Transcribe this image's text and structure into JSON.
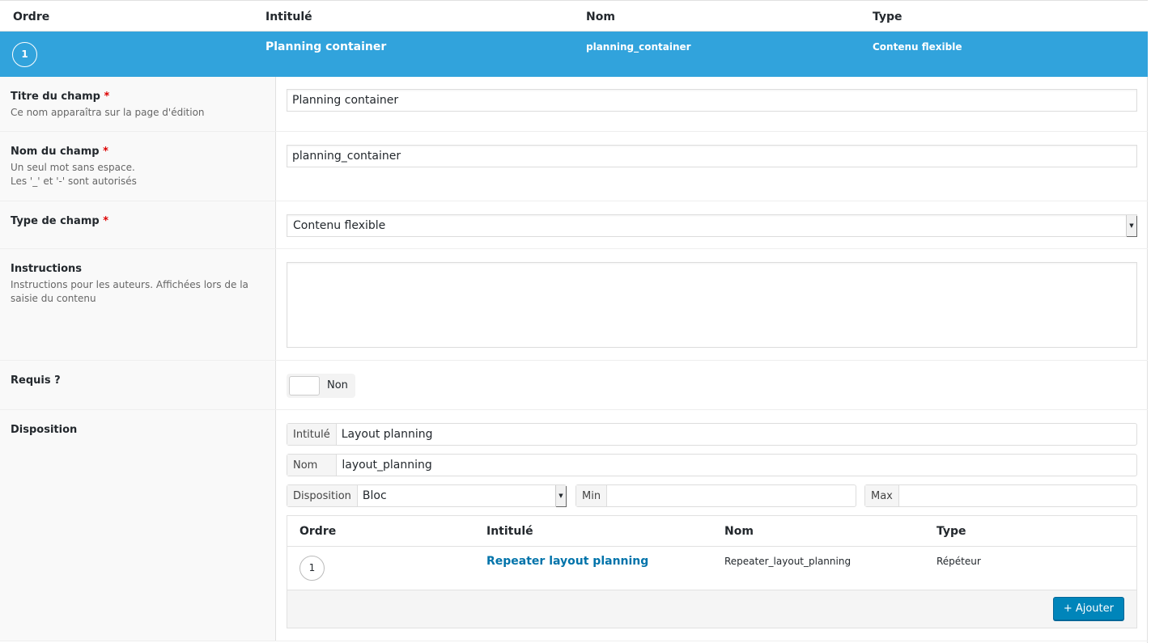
{
  "header": {
    "ordre": "Ordre",
    "intitule": "Intitulé",
    "nom": "Nom",
    "type": "Type"
  },
  "field": {
    "order": "1",
    "label": "Planning container",
    "name": "planning_container",
    "type": "Contenu flexible"
  },
  "rows": {
    "title": {
      "label": "Titre du champ",
      "req": "*",
      "desc": "Ce nom apparaîtra sur la page d'édition",
      "value": "Planning container"
    },
    "name": {
      "label": "Nom du champ",
      "req": "*",
      "desc1": "Un seul mot sans espace.",
      "desc2": "Les '_' et '-' sont autorisés",
      "value": "planning_container"
    },
    "type": {
      "label": "Type de champ",
      "req": "*",
      "value": "Contenu flexible"
    },
    "instructions": {
      "label": "Instructions",
      "desc": "Instructions pour les auteurs. Affichées lors de la saisie du contenu",
      "value": ""
    },
    "required": {
      "label": "Requis ?",
      "toggle": "Non"
    },
    "layout": {
      "label": "Disposition",
      "intitule_label": "Intitulé",
      "intitule_value": "Layout planning",
      "nom_label": "Nom",
      "nom_value": "layout_planning",
      "disp_label": "Disposition",
      "disp_value": "Bloc",
      "min_label": "Min",
      "min_value": "",
      "max_label": "Max",
      "max_value": ""
    }
  },
  "sub": {
    "header": {
      "ordre": "Ordre",
      "intitule": "Intitulé",
      "nom": "Nom",
      "type": "Type"
    },
    "row": {
      "order": "1",
      "label": "Repeater layout planning",
      "name": "Repeater_layout_planning",
      "type": "Répéteur"
    },
    "add": "+ Ajouter"
  },
  "colors": {
    "accent": "#31a3dc",
    "button": "#0085ba",
    "link": "#0073aa"
  }
}
